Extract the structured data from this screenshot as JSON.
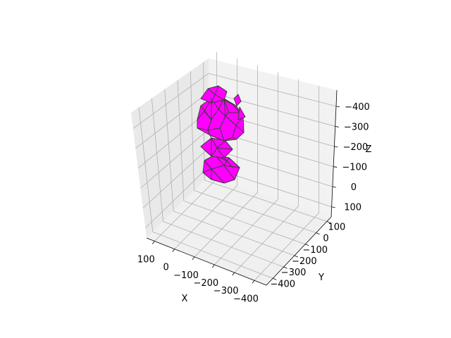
{
  "chart_data": {
    "type": "3d-polygon-mesh",
    "title": "",
    "xlabel": "X",
    "ylabel": "Y",
    "zlabel": "Z",
    "x_ticks": [
      "100",
      "0",
      "−100",
      "−200",
      "−300",
      "−400"
    ],
    "y_ticks": [
      "−400",
      "−300",
      "−200",
      "−100",
      "0",
      "100"
    ],
    "z_ticks": [
      "100",
      "0",
      "−100",
      "−200",
      "−300",
      "−400"
    ],
    "x_tick_values": [
      100,
      0,
      -100,
      -200,
      -300,
      -400
    ],
    "y_tick_values": [
      -400,
      -300,
      -200,
      -100,
      0,
      100
    ],
    "z_tick_values": [
      100,
      0,
      -100,
      -200,
      -300,
      -400
    ],
    "face_color": "#ff00ff",
    "edge_color": "#3d3d3d",
    "pane_color": "#f2f2f2",
    "grid": true
  }
}
